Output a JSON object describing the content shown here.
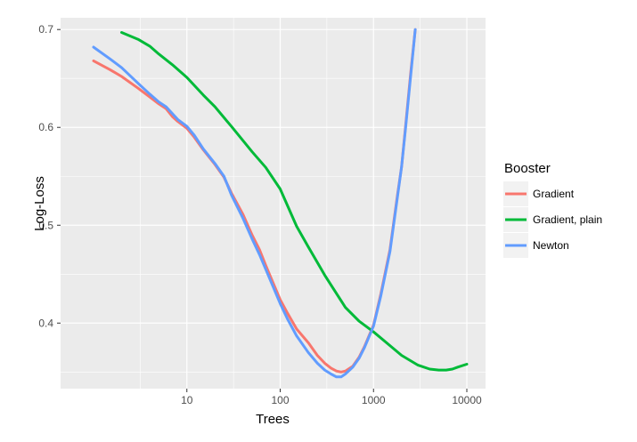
{
  "chart_data": {
    "type": "line",
    "xlabel": "Trees",
    "ylabel": "Log-Loss",
    "x_scale": "log10",
    "xlim": [
      1,
      10000
    ],
    "ylim": [
      0.333,
      0.712
    ],
    "x_ticks": [
      10,
      100,
      1000,
      10000
    ],
    "x_tick_labels": [
      "10",
      "100",
      "1000",
      "10000"
    ],
    "y_ticks": [
      0.4,
      0.5,
      0.6,
      0.7
    ],
    "y_tick_labels": [
      "0.4",
      "0.5",
      "0.6",
      "0.7"
    ],
    "grid": true,
    "legend": {
      "title": "Booster",
      "position": "right"
    },
    "series": [
      {
        "name": "Gradient",
        "color": "#f8766d",
        "points": [
          [
            1,
            0.668
          ],
          [
            1.5,
            0.659
          ],
          [
            2,
            0.652
          ],
          [
            3,
            0.64
          ],
          [
            4,
            0.631
          ],
          [
            5,
            0.624
          ],
          [
            6,
            0.619
          ],
          [
            7,
            0.611
          ],
          [
            8,
            0.606
          ],
          [
            10,
            0.599
          ],
          [
            12,
            0.59
          ],
          [
            15,
            0.577
          ],
          [
            20,
            0.562
          ],
          [
            25,
            0.549
          ],
          [
            30,
            0.533
          ],
          [
            40,
            0.511
          ],
          [
            50,
            0.49
          ],
          [
            60,
            0.475
          ],
          [
            70,
            0.459
          ],
          [
            80,
            0.446
          ],
          [
            100,
            0.424
          ],
          [
            120,
            0.41
          ],
          [
            150,
            0.394
          ],
          [
            200,
            0.38
          ],
          [
            250,
            0.367
          ],
          [
            300,
            0.359
          ],
          [
            350,
            0.354
          ],
          [
            400,
            0.351
          ],
          [
            450,
            0.35
          ],
          [
            500,
            0.351
          ],
          [
            600,
            0.356
          ],
          [
            700,
            0.365
          ],
          [
            800,
            0.376
          ],
          [
            1000,
            0.398
          ],
          [
            1200,
            0.43
          ],
          [
            1500,
            0.475
          ],
          [
            1800,
            0.53
          ],
          [
            2000,
            0.56
          ],
          [
            2200,
            0.6
          ],
          [
            2500,
            0.655
          ],
          [
            2800,
            0.7
          ]
        ]
      },
      {
        "name": "Gradient, plain",
        "color": "#00ba38",
        "points": [
          [
            2,
            0.697
          ],
          [
            3,
            0.69
          ],
          [
            4,
            0.683
          ],
          [
            5,
            0.675
          ],
          [
            7,
            0.664
          ],
          [
            10,
            0.651
          ],
          [
            15,
            0.633
          ],
          [
            20,
            0.621
          ],
          [
            30,
            0.601
          ],
          [
            50,
            0.575
          ],
          [
            70,
            0.559
          ],
          [
            100,
            0.537
          ],
          [
            150,
            0.499
          ],
          [
            200,
            0.478
          ],
          [
            300,
            0.449
          ],
          [
            500,
            0.416
          ],
          [
            700,
            0.402
          ],
          [
            1000,
            0.391
          ],
          [
            1500,
            0.377
          ],
          [
            2000,
            0.367
          ],
          [
            3000,
            0.357
          ],
          [
            4000,
            0.353
          ],
          [
            5000,
            0.352
          ],
          [
            6000,
            0.352
          ],
          [
            7000,
            0.353
          ],
          [
            8000,
            0.355
          ],
          [
            10000,
            0.358
          ]
        ]
      },
      {
        "name": "Newton",
        "color": "#619cff",
        "points": [
          [
            1,
            0.682
          ],
          [
            1.5,
            0.67
          ],
          [
            2,
            0.661
          ],
          [
            3,
            0.645
          ],
          [
            4,
            0.634
          ],
          [
            5,
            0.626
          ],
          [
            6,
            0.621
          ],
          [
            7,
            0.614
          ],
          [
            8,
            0.608
          ],
          [
            10,
            0.601
          ],
          [
            12,
            0.592
          ],
          [
            15,
            0.578
          ],
          [
            20,
            0.563
          ],
          [
            25,
            0.55
          ],
          [
            30,
            0.531
          ],
          [
            40,
            0.507
          ],
          [
            50,
            0.486
          ],
          [
            60,
            0.47
          ],
          [
            70,
            0.455
          ],
          [
            80,
            0.442
          ],
          [
            100,
            0.42
          ],
          [
            120,
            0.404
          ],
          [
            150,
            0.387
          ],
          [
            200,
            0.37
          ],
          [
            250,
            0.359
          ],
          [
            300,
            0.352
          ],
          [
            350,
            0.348
          ],
          [
            400,
            0.345
          ],
          [
            450,
            0.345
          ],
          [
            500,
            0.348
          ],
          [
            600,
            0.355
          ],
          [
            700,
            0.364
          ],
          [
            800,
            0.375
          ],
          [
            1000,
            0.397
          ],
          [
            1200,
            0.428
          ],
          [
            1500,
            0.473
          ],
          [
            1800,
            0.528
          ],
          [
            2000,
            0.56
          ],
          [
            2200,
            0.598
          ],
          [
            2500,
            0.652
          ],
          [
            2800,
            0.7
          ]
        ]
      }
    ]
  }
}
